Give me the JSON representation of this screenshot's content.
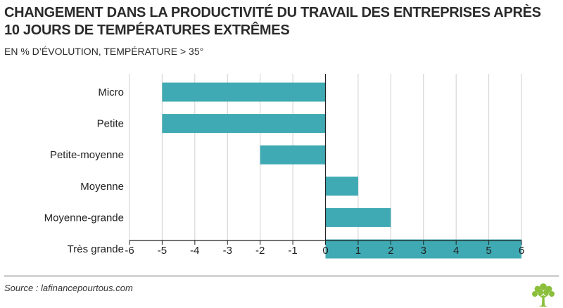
{
  "title_line1": "CHANGEMENT DANS LA PRODUCTIVITÉ DU TRAVAIL DES ENTREPRISES APRÈS",
  "title_line2": "10 JOURS DE TEMPÉRATURES EXTRÊMES",
  "subtitle": "EN % D’ÉVOLUTION, TEMPÉRATURE > 35°",
  "source": "Source : lafinancepourtous.com",
  "colors": {
    "bar": "#3faab3",
    "grid": "#cfcfcf",
    "axis": "#222222"
  },
  "logo_icon": "tree-logo-icon",
  "chart_data": {
    "type": "bar",
    "orientation": "horizontal",
    "title": "CHANGEMENT DANS LA PRODUCTIVITÉ DU TRAVAIL DES ENTREPRISES APRÈS 10 JOURS DE TEMPÉRATURES EXTRÊMES",
    "subtitle": "EN % D’ÉVOLUTION, TEMPÉRATURE > 35°",
    "categories": [
      "Micro",
      "Petite",
      "Petite-moyenne",
      "Moyenne",
      "Moyenne-grande",
      "Très grande"
    ],
    "values": [
      -5,
      -5,
      -2,
      1,
      2,
      6
    ],
    "xlim": [
      -6,
      6
    ],
    "xticks": [
      "-6",
      "-5",
      "-4",
      "-3",
      "-2",
      "-1",
      "0",
      "1",
      "2",
      "3",
      "4",
      "5",
      "6"
    ],
    "grid": true,
    "legend": "none"
  }
}
